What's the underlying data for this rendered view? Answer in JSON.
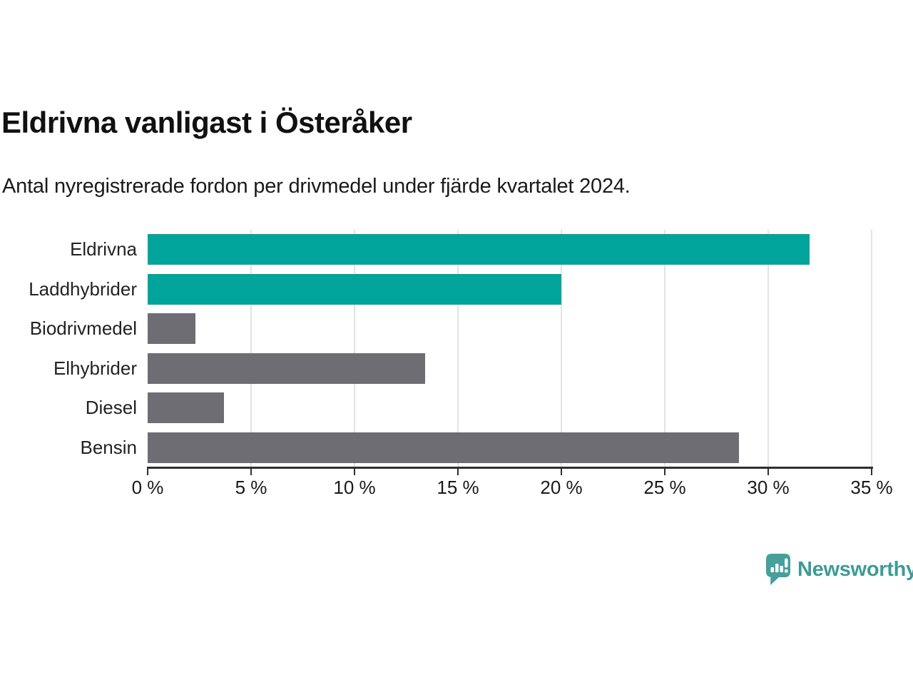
{
  "title": "Eldrivna vanligast i Österåker",
  "subtitle": "Antal nyregistrerade fordon per drivmedel under fjärde kvartalet 2024.",
  "branding": {
    "name": "Newsworthy",
    "logo_color": "#45a09b",
    "text_color": "#3d9b97"
  },
  "colors": {
    "highlight_bar": "#00a49b",
    "default_bar": "#6d6d73",
    "gridline": "#e3e3e3",
    "axis": "#2f2f2f",
    "text": "#1a1a1a"
  },
  "chart_data": {
    "type": "bar",
    "orientation": "horizontal",
    "title": "Eldrivna vanligast i Österåker",
    "subtitle": "Antal nyregistrerade fordon per drivmedel under fjärde kvartalet 2024.",
    "categories": [
      "Eldrivna",
      "Laddhybrider",
      "Biodrivmedel",
      "Elhybrider",
      "Diesel",
      "Bensin"
    ],
    "values": [
      32.0,
      20.0,
      2.3,
      13.4,
      3.7,
      28.6
    ],
    "bar_colors": [
      "#00a49b",
      "#00a49b",
      "#6d6d73",
      "#6d6d73",
      "#6d6d73",
      "#6d6d73"
    ],
    "xlabel": "",
    "ylabel": "",
    "xlim": [
      0,
      35
    ],
    "xticks": [
      0,
      5,
      10,
      15,
      20,
      25,
      30,
      35
    ],
    "xtick_labels": [
      "0 %",
      "5 %",
      "10 %",
      "15 %",
      "20 %",
      "25 %",
      "30 %",
      "35 %"
    ],
    "grid": true,
    "legend": false,
    "unit": "percent"
  }
}
